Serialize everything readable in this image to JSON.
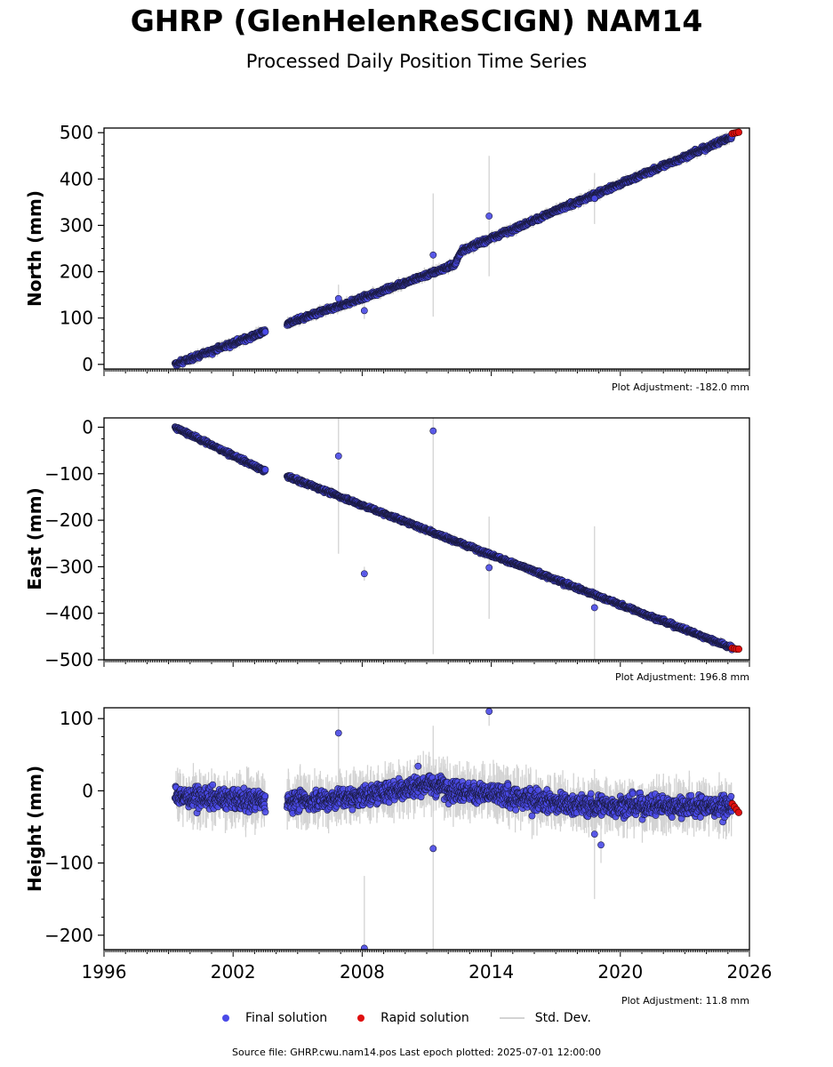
{
  "title": "GHRP (GlenHelenReSCIGN) NAM14",
  "subtitle": "Processed Daily Position Time Series",
  "colors": {
    "final": "#4a4ae8",
    "rapid": "#e01010",
    "stddev": "#d3d3d3"
  },
  "legend": {
    "final": "Final solution",
    "rapid": "Rapid solution",
    "stddev": "Std. Dev."
  },
  "source": "Source file: GHRP.cwu.nam14.pos  Last epoch plotted: 2025-07-01 12:00:00",
  "chart_data": [
    {
      "type": "scatter",
      "ylabel": "North (mm)",
      "adjustment": "Plot Adjustment: -182.0 mm",
      "xlim": [
        1996,
        2026
      ],
      "ylim": [
        -10,
        510
      ],
      "yticks": [
        0,
        100,
        200,
        300,
        400,
        500
      ],
      "xticks": [
        1996,
        2002,
        2008,
        2014,
        2020,
        2026
      ],
      "x_ticklabels_shown": false,
      "series": [
        {
          "name": "Final solution",
          "trend": [
            [
              1999.3,
              0
            ],
            [
              2004.5,
              88
            ],
            [
              2008.0,
              143
            ],
            [
              2012.3,
              215
            ],
            [
              2012.6,
              245
            ],
            [
              2025.4,
              495
            ]
          ],
          "scatter": 5
        },
        {
          "name": "Rapid solution",
          "x": [
            2025.2,
            2025.3,
            2025.4,
            2025.5
          ],
          "y": [
            498,
            499,
            500,
            501
          ]
        }
      ],
      "outliers": [
        {
          "x": 2008.1,
          "y": 116,
          "err": 18
        },
        {
          "x": 2011.3,
          "y": 236,
          "err": 133
        },
        {
          "x": 2013.9,
          "y": 320,
          "err": 130
        },
        {
          "x": 2006.9,
          "y": 142,
          "err": 30
        },
        {
          "x": 2018.8,
          "y": 358,
          "err": 55
        }
      ],
      "gaps": [
        [
          2003.5,
          2004.5
        ]
      ]
    },
    {
      "type": "scatter",
      "ylabel": "East (mm)",
      "adjustment": "Plot Adjustment: 196.8 mm",
      "xlim": [
        1996,
        2026
      ],
      "ylim": [
        -500,
        20
      ],
      "yticks": [
        0,
        -100,
        -200,
        -300,
        -400,
        -500
      ],
      "yticklabels": [
        "0",
        "−100",
        "−200",
        "−300",
        "−400",
        "−500"
      ],
      "xticks": [
        1996,
        2002,
        2008,
        2014,
        2020,
        2026
      ],
      "x_ticklabels_shown": false,
      "series": [
        {
          "name": "Final solution",
          "trend": [
            [
              1999.3,
              0
            ],
            [
              2003.5,
              -95
            ],
            [
              2004.5,
              -105
            ],
            [
              2025.4,
              -478
            ]
          ],
          "scatter": 4
        },
        {
          "name": "Rapid solution",
          "x": [
            2025.2,
            2025.3,
            2025.4,
            2025.5
          ],
          "y": [
            -475,
            -476,
            -477,
            -477
          ]
        }
      ],
      "outliers": [
        {
          "x": 2006.9,
          "y": -62,
          "err": 210
        },
        {
          "x": 2008.1,
          "y": -315,
          "err": 15
        },
        {
          "x": 2011.3,
          "y": -8,
          "err": 480
        },
        {
          "x": 2013.9,
          "y": -302,
          "err": 110
        },
        {
          "x": 2018.8,
          "y": -388,
          "err": 175
        }
      ],
      "gaps": [
        [
          2003.5,
          2004.5
        ]
      ]
    },
    {
      "type": "scatter",
      "ylabel": "Height (mm)",
      "adjustment": "Plot Adjustment: 11.8 mm",
      "xlim": [
        1996,
        2026
      ],
      "ylim": [
        -220,
        115
      ],
      "yticks": [
        100,
        0,
        -100,
        -200
      ],
      "yticklabels": [
        "100",
        "0",
        "−100",
        "−200"
      ],
      "xticks": [
        1996,
        2002,
        2008,
        2014,
        2020,
        2026
      ],
      "x_ticklabels_shown": true,
      "series": [
        {
          "name": "Final solution",
          "trend": [
            [
              1999.3,
              -8
            ],
            [
              2004.5,
              -15
            ],
            [
              2008.0,
              -8
            ],
            [
              2011.0,
              10
            ],
            [
              2012.5,
              0
            ],
            [
              2018.0,
              -20
            ],
            [
              2025.4,
              -22
            ]
          ],
          "scatter": 14
        },
        {
          "name": "Rapid solution",
          "x": [
            2025.2,
            2025.3,
            2025.4,
            2025.5
          ],
          "y": [
            -18,
            -22,
            -26,
            -30
          ]
        }
      ],
      "outliers": [
        {
          "x": 2006.9,
          "y": 80,
          "err": 90
        },
        {
          "x": 2008.1,
          "y": -218,
          "err": 100
        },
        {
          "x": 2011.3,
          "y": -80,
          "err": 170
        },
        {
          "x": 2013.9,
          "y": 110,
          "err": 20
        },
        {
          "x": 2018.8,
          "y": -60,
          "err": 90
        },
        {
          "x": 2019.1,
          "y": -75,
          "err": 25
        },
        {
          "x": 2010.6,
          "y": 34,
          "err": 15
        }
      ],
      "gaps": [
        [
          2003.5,
          2004.5
        ]
      ]
    }
  ]
}
